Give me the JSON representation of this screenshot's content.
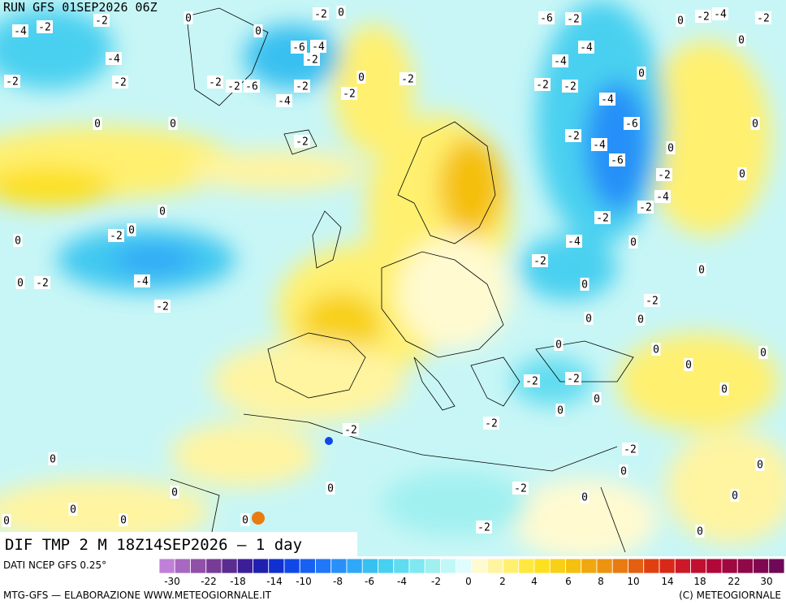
{
  "header": {
    "run": "RUN GFS 01SEP2026 06Z"
  },
  "map_title": "DIF TMP 2 M 18Z14SEP2026 — 1 day",
  "contour_labels": [
    -4,
    -2,
    -2,
    -4,
    -2,
    -2,
    0,
    0,
    0,
    0,
    -2,
    0,
    -6,
    -4,
    -2,
    -6,
    -2,
    -2,
    -2,
    -4,
    -2,
    0,
    -2,
    -2,
    0,
    0,
    -2,
    0,
    -4,
    -2,
    0,
    -2,
    -6,
    -2,
    -4,
    -4,
    -2,
    -2,
    -4,
    0,
    -6,
    -2,
    -4,
    -6,
    -2,
    -4,
    -2,
    -2,
    -4,
    -2,
    0,
    0,
    0,
    -2,
    -4,
    -2,
    0,
    0,
    0,
    0,
    0,
    -2,
    0,
    0,
    0,
    0,
    0,
    0,
    -2,
    -2,
    0,
    0,
    0,
    -2,
    -2,
    -2,
    0,
    0,
    0,
    0,
    0,
    -2,
    0,
    0,
    0,
    0,
    0,
    0,
    -2,
    0
  ],
  "colorbar": {
    "source": "DATI NCEP GFS 0.25°",
    "colors": [
      "#c080d8",
      "#a868c0",
      "#9050a8",
      "#783c98",
      "#5a2c90",
      "#3c1e98",
      "#2020b0",
      "#1030d0",
      "#1048e8",
      "#1860f0",
      "#2078f8",
      "#2890f8",
      "#30a8f8",
      "#38c0f0",
      "#48d0f0",
      "#60dcf0",
      "#80e8f0",
      "#a0f0f0",
      "#c0f8f8",
      "#e0fcfc",
      "#fffad0",
      "#fff4a0",
      "#fff070",
      "#ffe840",
      "#fde020",
      "#f8d018",
      "#f5c010",
      "#f0a810",
      "#ec9410",
      "#e87c10",
      "#e46010",
      "#e04010",
      "#d82818",
      "#cc1828",
      "#c01030",
      "#b00838",
      "#a00840",
      "#900848",
      "#800850",
      "#700858"
    ],
    "ticks": [
      -30,
      -22,
      -18,
      -14,
      -10,
      -8,
      -6,
      -4,
      -2,
      0,
      2,
      4,
      6,
      8,
      10,
      14,
      18,
      22,
      30
    ]
  },
  "footer": {
    "left": "MTG-GFS — ELABORAZIONE WWW.METEOGIORNALE.IT",
    "right": "(C) METEOGIORNALE"
  }
}
